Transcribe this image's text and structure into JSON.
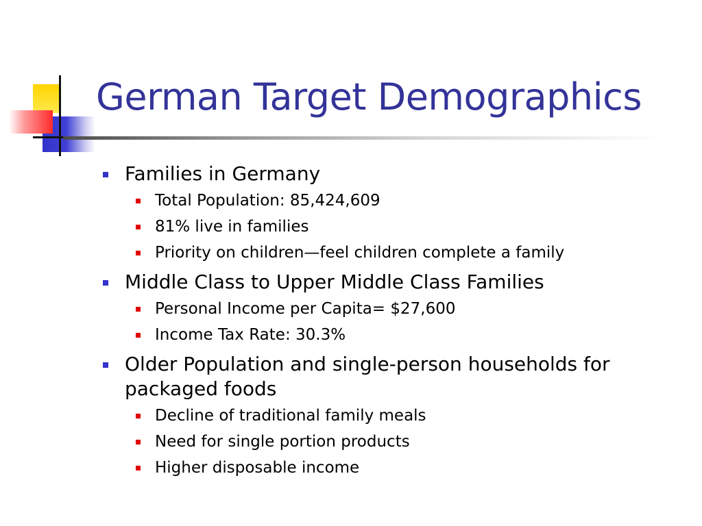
{
  "slide": {
    "title": "German Target Demographics",
    "sections": [
      {
        "heading": "Families in Germany",
        "items": [
          "Total Population: 85,424,609",
          "81% live in families",
          "Priority on children—feel children complete a family"
        ]
      },
      {
        "heading": "Middle Class to Upper Middle Class Families",
        "items": [
          "Personal Income per Capita= $27,600",
          "Income Tax Rate: 30.3%"
        ]
      },
      {
        "heading": "Older Population and single-person households for packaged foods",
        "items": [
          "Decline of traditional family meals",
          "Need for single portion products",
          "Higher disposable income"
        ]
      }
    ]
  },
  "colors": {
    "title": "#333399",
    "level1_bullet": "#3333cc",
    "level2_bullet": "#e00000",
    "accent_yellow": "#ffd400",
    "accent_red": "#ff2a2a",
    "accent_blue": "#3333cc"
  }
}
